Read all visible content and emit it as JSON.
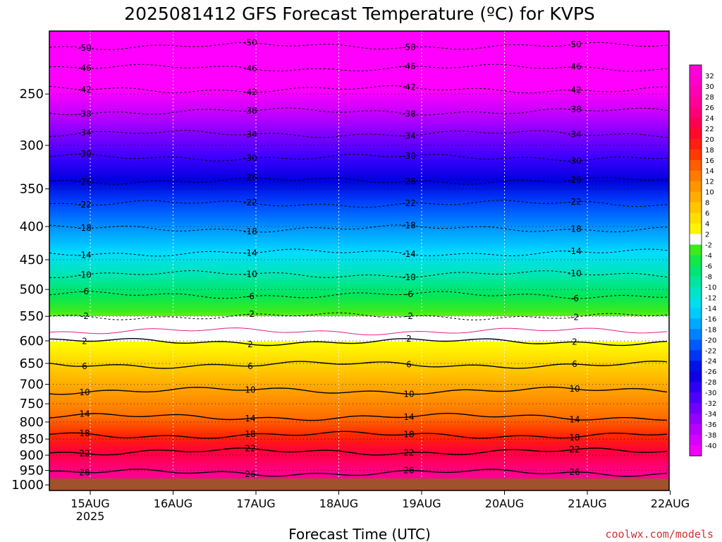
{
  "chart_data": {
    "type": "heatmap",
    "title": "2025081412 GFS Forecast Temperature (ºC) for KVPS",
    "xlabel": "Forecast Time (UTC)",
    "ylabel": "",
    "credit": "coolwx.com/models",
    "x_ticks": [
      {
        "label": "15AUG",
        "sub": "2025"
      },
      {
        "label": "16AUG",
        "sub": ""
      },
      {
        "label": "17AUG",
        "sub": ""
      },
      {
        "label": "18AUG",
        "sub": ""
      },
      {
        "label": "19AUG",
        "sub": ""
      },
      {
        "label": "20AUG",
        "sub": ""
      },
      {
        "label": "21AUG",
        "sub": ""
      },
      {
        "label": "22AUG",
        "sub": ""
      }
    ],
    "y_ticks": [
      250,
      300,
      350,
      400,
      450,
      500,
      550,
      600,
      650,
      700,
      750,
      800,
      850,
      900,
      950,
      1000
    ],
    "y_scale": "log-pressure",
    "y_range_hpa": [
      200,
      1020
    ],
    "colorbar_levels": [
      32,
      30,
      28,
      26,
      24,
      22,
      20,
      18,
      16,
      14,
      12,
      10,
      8,
      6,
      4,
      2,
      -2,
      -4,
      -6,
      -8,
      -10,
      -12,
      -14,
      -16,
      -18,
      -20,
      -22,
      -24,
      -26,
      -28,
      -30,
      -32,
      -34,
      -36,
      -38,
      -40
    ],
    "contours": [
      {
        "value": -50,
        "hpa": 211,
        "style": "dashed"
      },
      {
        "value": -46,
        "hpa": 228,
        "style": "dashed"
      },
      {
        "value": -42,
        "hpa": 246,
        "style": "dashed"
      },
      {
        "value": -38,
        "hpa": 266,
        "style": "dashed"
      },
      {
        "value": -34,
        "hpa": 288,
        "style": "dashed"
      },
      {
        "value": -30,
        "hpa": 313,
        "style": "dashed"
      },
      {
        "value": -26,
        "hpa": 340,
        "style": "dashed"
      },
      {
        "value": -22,
        "hpa": 369,
        "style": "dashed"
      },
      {
        "value": -18,
        "hpa": 403,
        "style": "dashed"
      },
      {
        "value": -14,
        "hpa": 439,
        "style": "dashed"
      },
      {
        "value": -10,
        "hpa": 474,
        "style": "dashed"
      },
      {
        "value": -6,
        "hpa": 510,
        "style": "dashed"
      },
      {
        "value": -2,
        "hpa": 550,
        "style": "dashed"
      },
      {
        "value": 0,
        "hpa": 580,
        "style": "magenta"
      },
      {
        "value": 2,
        "hpa": 602,
        "style": "solid"
      },
      {
        "value": 6,
        "hpa": 653,
        "style": "solid"
      },
      {
        "value": 10,
        "hpa": 716,
        "style": "solid"
      },
      {
        "value": 14,
        "hpa": 786,
        "style": "solid"
      },
      {
        "value": 18,
        "hpa": 838,
        "style": "solid"
      },
      {
        "value": 22,
        "hpa": 889,
        "style": "solid"
      },
      {
        "value": 26,
        "hpa": 958,
        "style": "solid"
      }
    ]
  }
}
